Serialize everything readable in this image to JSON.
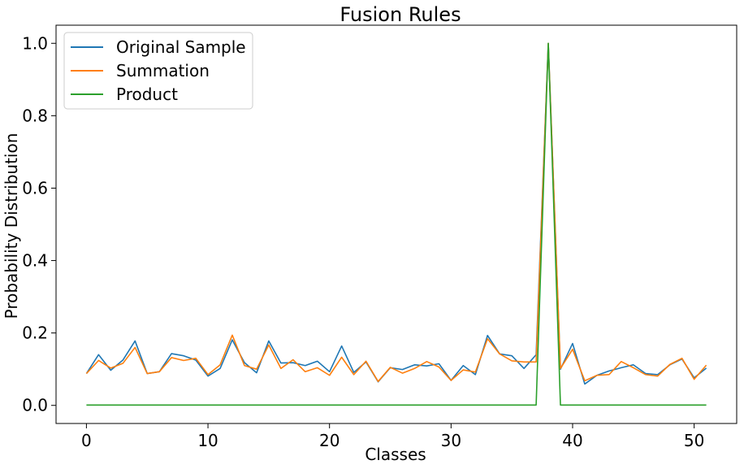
{
  "chart_data": {
    "type": "line",
    "title": "Fusion Rules",
    "xlabel": "Classes",
    "ylabel": "Probability Distribution",
    "xlim": [
      -2.5,
      53.5
    ],
    "ylim": [
      -0.05,
      1.05
    ],
    "xticks": [
      0,
      10,
      20,
      30,
      40,
      50
    ],
    "xtick_labels": [
      "0",
      "10",
      "20",
      "30",
      "40",
      "50"
    ],
    "yticks": [
      0.0,
      0.2,
      0.4,
      0.6,
      0.8,
      1.0
    ],
    "ytick_labels": [
      "0.0",
      "0.2",
      "0.4",
      "0.6",
      "0.8",
      "1.0"
    ],
    "legend_position": "top-left",
    "x": [
      0,
      1,
      2,
      3,
      4,
      5,
      6,
      7,
      8,
      9,
      10,
      11,
      12,
      13,
      14,
      15,
      16,
      17,
      18,
      19,
      20,
      21,
      22,
      23,
      24,
      25,
      26,
      27,
      28,
      29,
      30,
      31,
      32,
      33,
      34,
      35,
      36,
      37,
      38,
      39,
      40,
      41,
      42,
      43,
      44,
      45,
      46,
      47,
      48,
      49,
      50,
      51
    ],
    "series": [
      {
        "name": "Original Sample",
        "color": "#1f77b4",
        "values": [
          0.088,
          0.14,
          0.097,
          0.125,
          0.178,
          0.088,
          0.093,
          0.143,
          0.137,
          0.125,
          0.081,
          0.102,
          0.181,
          0.118,
          0.09,
          0.178,
          0.117,
          0.118,
          0.11,
          0.122,
          0.093,
          0.164,
          0.091,
          0.12,
          0.065,
          0.104,
          0.099,
          0.112,
          0.109,
          0.115,
          0.069,
          0.11,
          0.085,
          0.193,
          0.142,
          0.137,
          0.102,
          0.14,
          1.0,
          0.1,
          0.171,
          0.059,
          0.083,
          0.095,
          0.104,
          0.112,
          0.088,
          0.085,
          0.112,
          0.128,
          0.076,
          0.103
        ]
      },
      {
        "name": "Summation",
        "color": "#ff7f0e",
        "values": [
          0.088,
          0.124,
          0.103,
          0.116,
          0.16,
          0.088,
          0.093,
          0.132,
          0.124,
          0.13,
          0.085,
          0.112,
          0.194,
          0.11,
          0.1,
          0.167,
          0.102,
          0.126,
          0.093,
          0.104,
          0.083,
          0.133,
          0.085,
          0.122,
          0.066,
          0.105,
          0.089,
          0.102,
          0.121,
          0.106,
          0.069,
          0.098,
          0.092,
          0.184,
          0.142,
          0.123,
          0.12,
          0.12,
          1.0,
          0.102,
          0.155,
          0.068,
          0.083,
          0.085,
          0.121,
          0.104,
          0.085,
          0.081,
          0.113,
          0.13,
          0.072,
          0.111
        ]
      },
      {
        "name": "Product",
        "color": "#2ca02c",
        "values": [
          0.001,
          0.001,
          0.001,
          0.001,
          0.001,
          0.001,
          0.001,
          0.001,
          0.001,
          0.001,
          0.001,
          0.001,
          0.001,
          0.001,
          0.001,
          0.001,
          0.001,
          0.001,
          0.001,
          0.001,
          0.001,
          0.001,
          0.001,
          0.001,
          0.001,
          0.001,
          0.001,
          0.001,
          0.001,
          0.001,
          0.001,
          0.001,
          0.001,
          0.001,
          0.001,
          0.001,
          0.001,
          0.001,
          1.0,
          0.001,
          0.001,
          0.001,
          0.001,
          0.001,
          0.001,
          0.001,
          0.001,
          0.001,
          0.001,
          0.001,
          0.001,
          0.001
        ]
      }
    ]
  }
}
